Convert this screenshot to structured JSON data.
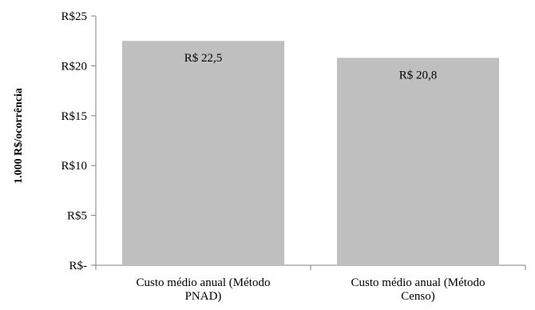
{
  "chart_data": {
    "type": "bar",
    "categories": [
      [
        "Custo médio anual (Método",
        "PNAD)"
      ],
      [
        "Custo médio anual (Método",
        "Censo)"
      ]
    ],
    "values": [
      22.5,
      20.8
    ],
    "data_labels": [
      "R$ 22,5",
      "R$ 20,8"
    ],
    "ylabel": "1.000 R$/ocorrência",
    "ylim": [
      0,
      25
    ],
    "yticks": [
      0,
      5,
      10,
      15,
      20,
      25
    ],
    "ytick_labels": [
      "R$-",
      "R$5",
      "R$10",
      "R$15",
      "R$20",
      "R$25"
    ],
    "bar_color": "#bfbfbf",
    "axis_color": "#808080",
    "grid": false,
    "legend": "none"
  }
}
